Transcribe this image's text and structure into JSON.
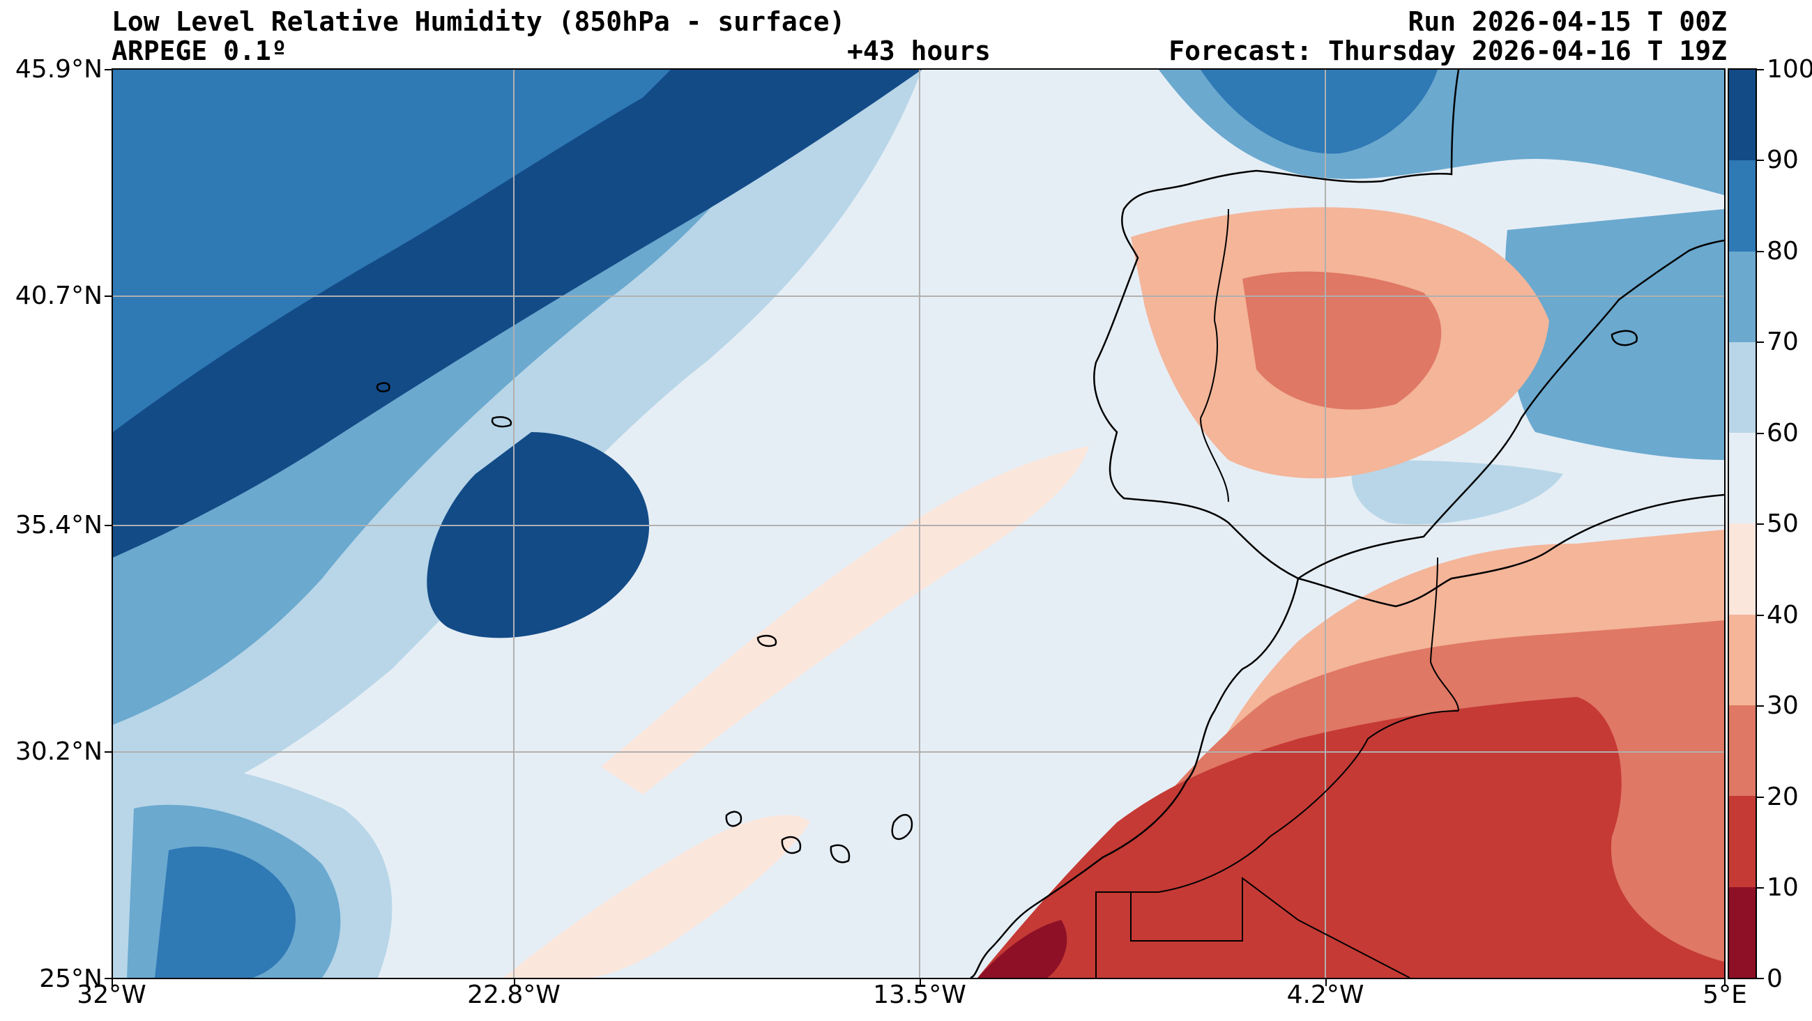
{
  "header": {
    "title": "Low Level Relative Humidity (850hPa - surface)",
    "model": "ARPEGE 0.1º",
    "lead_time": "+43 hours",
    "run": "Run 2026-04-15 T 00Z",
    "forecast": "Forecast: Thursday 2026-04-16 T 19Z"
  },
  "map": {
    "lat_labels": [
      "45.9°N",
      "40.7°N",
      "35.4°N",
      "30.2°N",
      "25°N"
    ],
    "lon_labels": [
      "32°W",
      "22.8°W",
      "13.5°W",
      "4.2°W",
      "5°E"
    ],
    "lat_range": [
      25,
      45.9
    ],
    "lon_range": [
      -32,
      5
    ],
    "grid": true,
    "coastlines": true,
    "country_borders": true
  },
  "colorbar": {
    "labels": [
      "100",
      "90",
      "80",
      "70",
      "60",
      "50",
      "40",
      "30",
      "20",
      "10",
      "0"
    ],
    "colors_top_to_bottom": [
      "#134b87",
      "#2f79b5",
      "#6ba9cf",
      "#b8d6e8",
      "#e6eef5",
      "#fbe6dc",
      "#f4b599",
      "#df7864",
      "#c53a35",
      "#8e1026"
    ],
    "range": [
      0,
      100
    ]
  }
}
